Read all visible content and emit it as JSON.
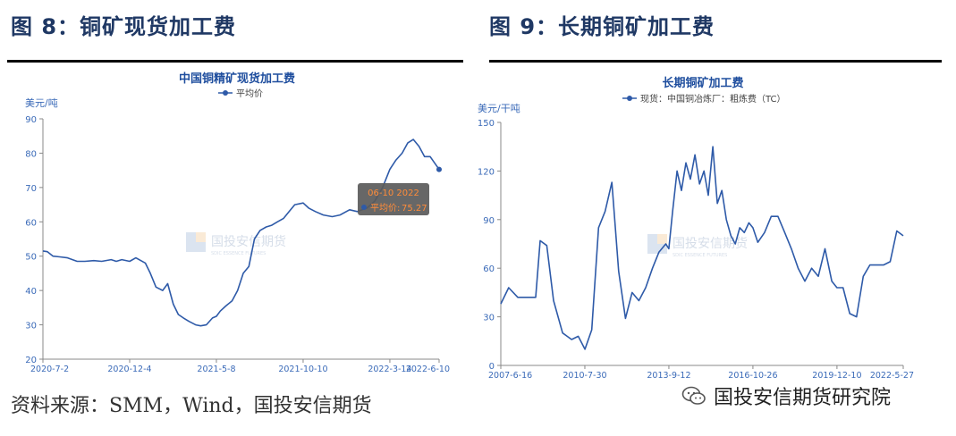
{
  "figure8": {
    "heading": "图 8：铜矿现货加工费",
    "chart_data": {
      "type": "line",
      "title": "中国铜精矿现货加工费",
      "ylabel": "美元/吨",
      "ylim": [
        20,
        90
      ],
      "yticks": [
        20,
        30,
        40,
        50,
        60,
        70,
        80,
        90
      ],
      "xlim": [
        "2020-07-02",
        "2022-06-10"
      ],
      "xticks": [
        "2020-7-2",
        "2020-12-4",
        "2021-5-8",
        "2021-10-10",
        "2022-3-14",
        "2022-6-10"
      ],
      "xtick_dates": [
        "2020-07-02",
        "2020-12-04",
        "2021-05-08",
        "2021-10-10",
        "2022-03-14",
        "2022-06-10"
      ],
      "legend_position": "top",
      "grid": false,
      "color": "#2e5aa8",
      "series": [
        {
          "name": "平均价",
          "x": [
            "2020-07-02",
            "2020-07-10",
            "2020-07-20",
            "2020-08-01",
            "2020-08-15",
            "2020-09-01",
            "2020-09-15",
            "2020-10-01",
            "2020-10-15",
            "2020-11-01",
            "2020-11-10",
            "2020-11-20",
            "2020-12-04",
            "2020-12-15",
            "2021-01-01",
            "2021-01-10",
            "2021-01-20",
            "2021-02-01",
            "2021-02-10",
            "2021-02-20",
            "2021-03-01",
            "2021-03-10",
            "2021-03-20",
            "2021-04-01",
            "2021-04-10",
            "2021-04-20",
            "2021-05-01",
            "2021-05-08",
            "2021-05-15",
            "2021-05-25",
            "2021-06-05",
            "2021-06-15",
            "2021-06-25",
            "2021-07-05",
            "2021-07-15",
            "2021-07-25",
            "2021-08-05",
            "2021-08-15",
            "2021-08-25",
            "2021-09-05",
            "2021-09-15",
            "2021-09-25",
            "2021-10-10",
            "2021-10-20",
            "2021-11-01",
            "2021-11-15",
            "2021-12-01",
            "2021-12-15",
            "2022-01-01",
            "2022-01-15",
            "2022-02-01",
            "2022-02-15",
            "2022-03-01",
            "2022-03-14",
            "2022-03-25",
            "2022-04-05",
            "2022-04-15",
            "2022-04-25",
            "2022-05-05",
            "2022-05-15",
            "2022-05-25",
            "2022-06-10"
          ],
          "y": [
            51.5,
            51.3,
            50,
            49.8,
            49.5,
            48.5,
            48.5,
            48.7,
            48.5,
            49,
            48.5,
            49,
            48.5,
            49.5,
            48,
            45,
            41,
            40,
            42,
            36,
            33,
            32,
            31,
            30,
            29.7,
            30,
            32,
            32.5,
            34,
            35.5,
            37,
            40,
            45,
            47,
            55,
            57.5,
            58.5,
            59,
            60,
            61,
            63,
            65,
            65.5,
            64,
            63,
            62,
            61.5,
            62,
            63.5,
            63,
            64,
            66,
            70,
            75.27,
            78,
            80,
            83,
            84,
            82,
            79,
            79,
            75.27
          ]
        }
      ]
    },
    "tooltip": {
      "date": "06-10 2022",
      "label": "平均价:",
      "value": "75.27"
    },
    "watermark": {
      "name": "国投安信期货",
      "sub": "SDIC ESSENCE FUTURES"
    }
  },
  "figure9": {
    "heading": "图 9：长期铜矿加工费",
    "chart_data": {
      "type": "line",
      "title": "长期铜矿加工费",
      "ylabel": "美元/干吨",
      "ylim": [
        0,
        150
      ],
      "yticks": [
        0,
        30,
        60,
        90,
        120,
        150
      ],
      "xlim": [
        "2007-06-16",
        "2022-05-27"
      ],
      "xticks": [
        "2007-6-16",
        "2010-7-30",
        "2013-9-12",
        "2016-10-26",
        "2019-12-10",
        "2022-5-27"
      ],
      "xtick_dates": [
        "2007-06-16",
        "2010-07-30",
        "2013-09-12",
        "2016-10-26",
        "2019-12-10",
        "2022-05-27"
      ],
      "legend_position": "top",
      "grid": false,
      "color": "#2e5aa8",
      "series": [
        {
          "name": "现货：中国铜冶炼厂：粗炼费（TC）",
          "x": [
            "2007-06-16",
            "2007-10-01",
            "2008-02-01",
            "2008-06-01",
            "2008-10-01",
            "2008-12-01",
            "2009-03-01",
            "2009-06-01",
            "2009-10-01",
            "2010-02-01",
            "2010-05-01",
            "2010-08-01",
            "2010-11-01",
            "2011-02-01",
            "2011-05-01",
            "2011-08-01",
            "2011-11-01",
            "2012-02-01",
            "2012-05-01",
            "2012-08-01",
            "2012-11-01",
            "2013-02-01",
            "2013-05-01",
            "2013-08-01",
            "2013-09-12",
            "2013-11-01",
            "2014-01-01",
            "2014-03-01",
            "2014-05-01",
            "2014-07-01",
            "2014-09-01",
            "2014-11-01",
            "2015-01-01",
            "2015-03-01",
            "2015-05-01",
            "2015-07-01",
            "2015-09-01",
            "2015-11-01",
            "2016-01-01",
            "2016-03-01",
            "2016-05-01",
            "2016-07-01",
            "2016-09-01",
            "2016-10-26",
            "2017-01-01",
            "2017-04-01",
            "2017-07-01",
            "2017-10-01",
            "2018-01-01",
            "2018-04-01",
            "2018-07-01",
            "2018-10-01",
            "2019-01-01",
            "2019-04-01",
            "2019-07-01",
            "2019-10-01",
            "2019-12-10",
            "2020-03-01",
            "2020-06-01",
            "2020-09-01",
            "2020-12-01",
            "2021-03-01",
            "2021-06-01",
            "2021-09-01",
            "2021-12-01",
            "2022-03-01",
            "2022-05-27"
          ],
          "y": [
            38,
            48,
            42,
            42,
            42,
            77,
            74,
            40,
            20,
            16,
            18,
            10,
            22,
            85,
            95,
            113,
            58,
            29,
            45,
            40,
            48,
            60,
            70,
            75,
            72,
            95,
            120,
            108,
            125,
            115,
            130,
            112,
            120,
            105,
            135,
            100,
            108,
            90,
            80,
            75,
            85,
            82,
            88,
            85,
            76,
            82,
            92,
            92,
            82,
            72,
            60,
            52,
            60,
            55,
            72,
            52,
            48,
            48,
            32,
            30,
            55,
            62,
            62,
            62,
            64,
            83,
            80
          ]
        }
      ]
    },
    "watermark": {
      "name": "国投安信期货",
      "sub": "SDIC ESSENCE FUTURES"
    }
  },
  "source": "资料来源：SMM，Wind，国投安信期货",
  "wechat": "国投安信期货研究院"
}
